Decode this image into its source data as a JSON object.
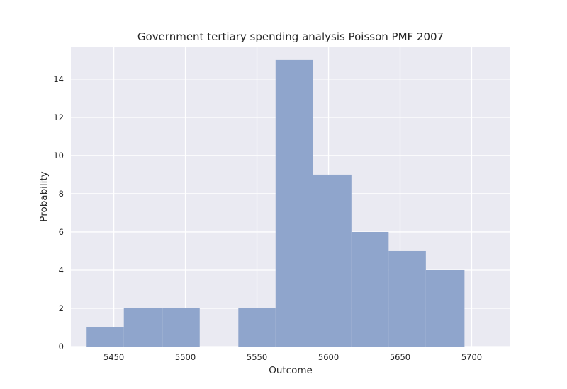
{
  "chart_data": {
    "type": "bar",
    "title": "Government tertiary spending analysis Poisson PMF 2007",
    "xlabel": "Outcome",
    "ylabel": "Probability",
    "xlim": [
      5420,
      5727
    ],
    "ylim": [
      0,
      15.7
    ],
    "xticks": [
      5450,
      5500,
      5550,
      5600,
      5650,
      5700
    ],
    "yticks": [
      0,
      2,
      4,
      6,
      8,
      10,
      12,
      14
    ],
    "bins": [
      {
        "x0": 5431,
        "x1": 5457,
        "value": 1
      },
      {
        "x0": 5457,
        "x1": 5484,
        "value": 2
      },
      {
        "x0": 5484,
        "x1": 5510,
        "value": 2
      },
      {
        "x0": 5510,
        "x1": 5537,
        "value": 0
      },
      {
        "x0": 5537,
        "x1": 5563,
        "value": 2
      },
      {
        "x0": 5563,
        "x1": 5589,
        "value": 15
      },
      {
        "x0": 5589,
        "x1": 5616,
        "value": 9
      },
      {
        "x0": 5616,
        "x1": 5642,
        "value": 6
      },
      {
        "x0": 5642,
        "x1": 5668,
        "value": 5
      },
      {
        "x0": 5668,
        "x1": 5695,
        "value": 4
      }
    ],
    "grid": true,
    "colors": {
      "bar": "#8fa5cc",
      "background": "#eaeaf2",
      "grid": "#ffffff"
    }
  }
}
